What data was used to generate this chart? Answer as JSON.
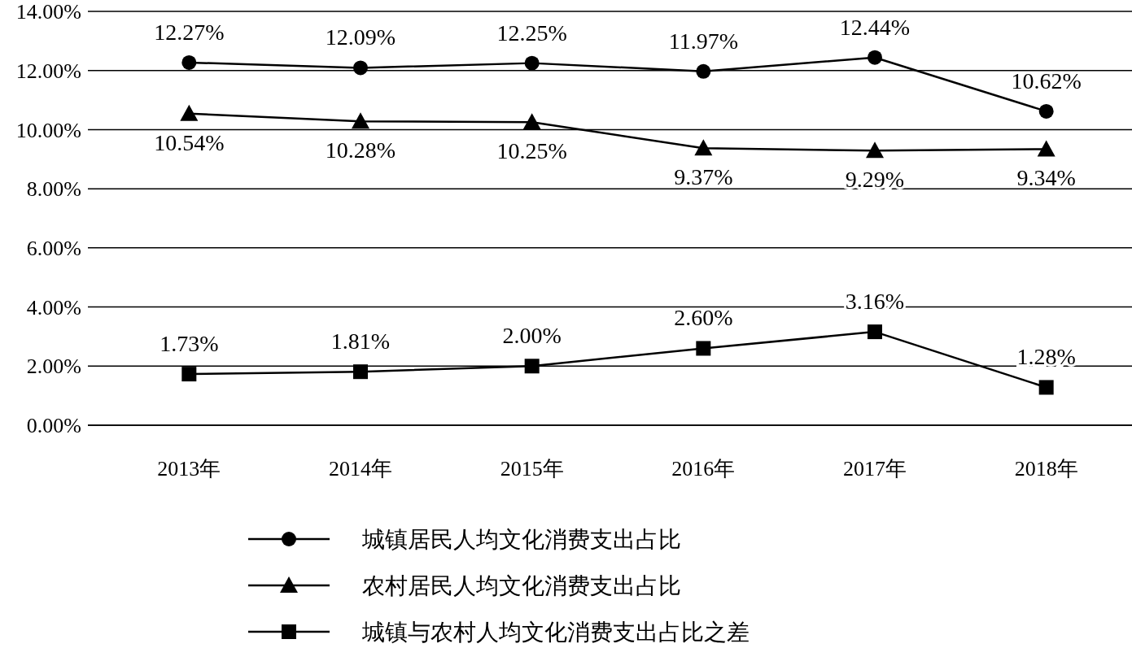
{
  "chart_data": {
    "type": "line",
    "categories": [
      "2013年",
      "2014年",
      "2015年",
      "2016年",
      "2017年",
      "2018年"
    ],
    "ylim": [
      0,
      14
    ],
    "yticks": [
      {
        "value": 0,
        "label": "0.00%"
      },
      {
        "value": 2,
        "label": "2.00%"
      },
      {
        "value": 4,
        "label": "4.00%"
      },
      {
        "value": 6,
        "label": "6.00%"
      },
      {
        "value": 8,
        "label": "8.00%"
      },
      {
        "value": 10,
        "label": "10.00%"
      },
      {
        "value": 12,
        "label": "12.00%"
      },
      {
        "value": 14,
        "label": "14.00%"
      }
    ],
    "grid": "y",
    "legend": "bottom",
    "line_style": "solid",
    "series": [
      {
        "name": "城镇居民人均文化消费支出占比",
        "color": "#000000",
        "marker": "circle",
        "values": [
          12.27,
          12.09,
          12.25,
          11.97,
          12.44,
          10.62
        ],
        "value_labels": [
          "12.27%",
          "12.09%",
          "12.25%",
          "11.97%",
          "12.44%",
          "10.62%"
        ]
      },
      {
        "name": "农村居民人均文化消费支出占比",
        "color": "#000000",
        "marker": "triangle",
        "values": [
          10.54,
          10.28,
          10.25,
          9.37,
          9.29,
          9.34
        ],
        "value_labels": [
          "10.54%",
          "10.28%",
          "10.25%",
          "9.37%",
          "9.29%",
          "9.34%"
        ]
      },
      {
        "name": "城镇与农村人均文化消费支出占比之差",
        "color": "#000000",
        "marker": "square",
        "values": [
          1.73,
          1.81,
          2.0,
          2.6,
          3.16,
          1.28
        ],
        "value_labels": [
          "1.73%",
          "1.81%",
          "2.00%",
          "2.60%",
          "3.16%",
          "1.28%"
        ]
      }
    ]
  }
}
